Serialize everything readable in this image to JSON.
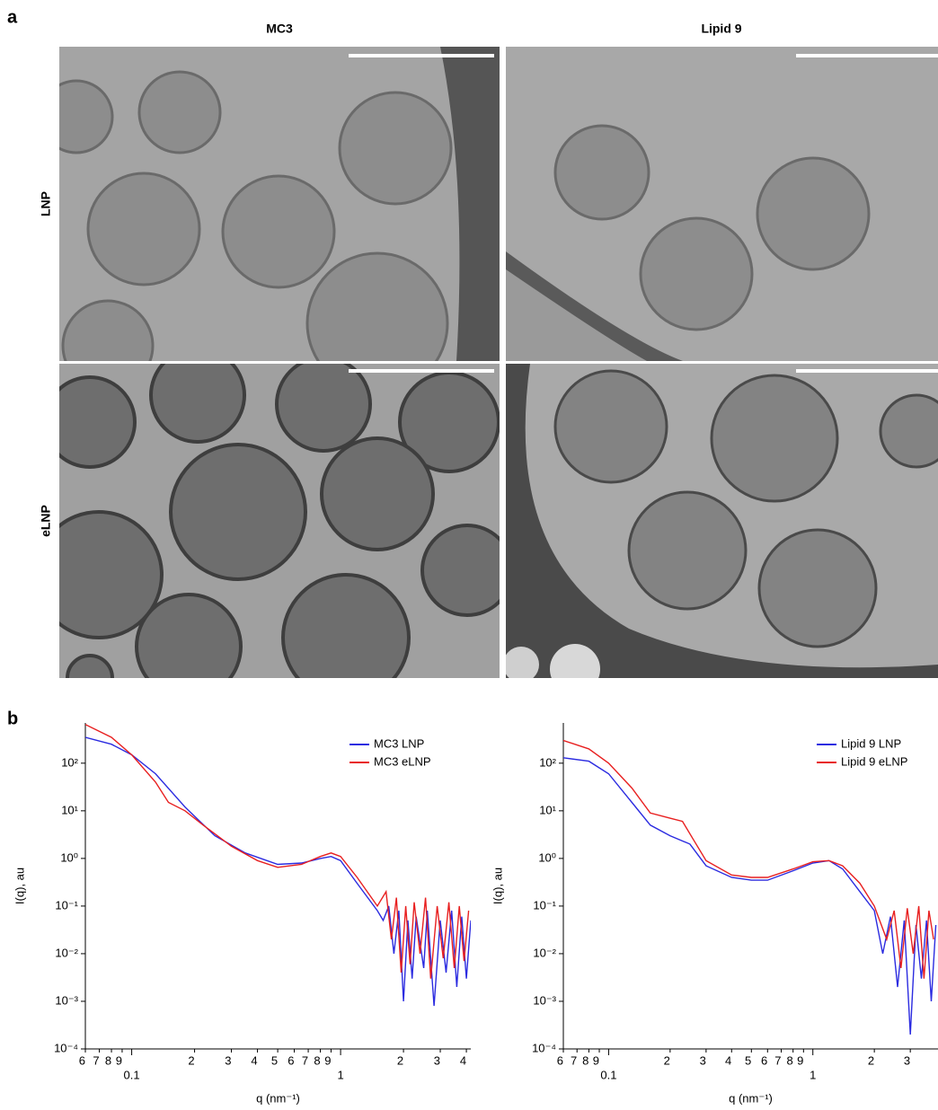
{
  "panel_a": {
    "label": "a",
    "columns": [
      "MC3",
      "Lipid 9"
    ],
    "rows": [
      "LNP",
      "eLNP"
    ]
  },
  "panel_b_label": "b",
  "chart_data": [
    {
      "type": "line",
      "xlabel": "q (nm⁻¹)",
      "ylabel": "I(q), au",
      "xscale": "log",
      "yscale": "log",
      "legend": "upper right",
      "xlim": [
        0.06,
        4.2
      ],
      "ylim": [
        0.0001,
        700
      ],
      "xticks": [
        {
          "value": 0.06,
          "label": "6"
        },
        {
          "value": 0.07,
          "label": "7"
        },
        {
          "value": 0.08,
          "label": "8"
        },
        {
          "value": 0.09,
          "label": "9"
        },
        0.1,
        {
          "value": 0.2,
          "label": "2"
        },
        {
          "value": 0.3,
          "label": "3"
        },
        {
          "value": 0.4,
          "label": "4"
        },
        {
          "value": 0.5,
          "label": "5"
        },
        {
          "value": 0.6,
          "label": "6"
        },
        {
          "value": 0.7,
          "label": "7"
        },
        {
          "value": 0.8,
          "label": "8"
        },
        {
          "value": 0.9,
          "label": "9"
        },
        1,
        {
          "value": 2,
          "label": "2"
        },
        {
          "value": 3,
          "label": "3"
        },
        {
          "value": 4,
          "label": "4"
        }
      ],
      "yticks": [
        {
          "value": 100,
          "label": "10²"
        },
        {
          "value": 10,
          "label": "10¹"
        },
        {
          "value": 1,
          "label": "10⁰"
        },
        {
          "value": 0.1,
          "label": "10⁻¹"
        },
        {
          "value": 0.01,
          "label": "10⁻²"
        },
        {
          "value": 0.001,
          "label": "10⁻³"
        },
        {
          "value": 0.0001,
          "label": "10⁻⁴"
        }
      ],
      "series": [
        {
          "name": "MC3 LNP",
          "color": "#2b2be0",
          "x": [
            0.06,
            0.08,
            0.1,
            0.13,
            0.18,
            0.25,
            0.35,
            0.5,
            0.65,
            0.8,
            0.9,
            1.0,
            1.2,
            1.5,
            1.6,
            1.7,
            1.8,
            1.9,
            2.0,
            2.1,
            2.2,
            2.3,
            2.5,
            2.6,
            2.8,
            3.0,
            3.2,
            3.4,
            3.6,
            3.8,
            4.0,
            4.2
          ],
          "values": [
            350,
            250,
            150,
            60,
            12,
            3,
            1.3,
            0.75,
            0.8,
            1.0,
            1.1,
            0.9,
            0.3,
            0.08,
            0.05,
            0.1,
            0.01,
            0.08,
            0.001,
            0.05,
            0.003,
            0.06,
            0.005,
            0.08,
            0.0008,
            0.05,
            0.004,
            0.08,
            0.002,
            0.06,
            0.003,
            0.05
          ]
        },
        {
          "name": "MC3 eLNP",
          "color": "#e82020",
          "x": [
            0.06,
            0.08,
            0.1,
            0.13,
            0.15,
            0.18,
            0.22,
            0.3,
            0.4,
            0.5,
            0.65,
            0.8,
            0.9,
            1.0,
            1.2,
            1.5,
            1.65,
            1.75,
            1.85,
            1.95,
            2.05,
            2.15,
            2.25,
            2.4,
            2.55,
            2.7,
            2.9,
            3.1,
            3.3,
            3.5,
            3.7,
            3.9,
            4.1
          ],
          "values": [
            650,
            350,
            150,
            40,
            15,
            10,
            5,
            1.8,
            0.9,
            0.65,
            0.75,
            1.1,
            1.3,
            1.1,
            0.4,
            0.1,
            0.2,
            0.02,
            0.15,
            0.004,
            0.1,
            0.006,
            0.12,
            0.01,
            0.15,
            0.003,
            0.1,
            0.008,
            0.12,
            0.005,
            0.1,
            0.007,
            0.08
          ]
        }
      ]
    },
    {
      "type": "line",
      "xlabel": "q (nm⁻¹)",
      "ylabel": "I(q), au",
      "xscale": "log",
      "yscale": "log",
      "legend": "upper right",
      "xlim": [
        0.06,
        4.1
      ],
      "ylim": [
        0.0001,
        700
      ],
      "xticks": [
        {
          "value": 0.06,
          "label": "6"
        },
        {
          "value": 0.07,
          "label": "7"
        },
        {
          "value": 0.08,
          "label": "8"
        },
        {
          "value": 0.09,
          "label": "9"
        },
        0.1,
        {
          "value": 0.2,
          "label": "2"
        },
        {
          "value": 0.3,
          "label": "3"
        },
        {
          "value": 0.4,
          "label": "4"
        },
        {
          "value": 0.5,
          "label": "5"
        },
        {
          "value": 0.6,
          "label": "6"
        },
        {
          "value": 0.7,
          "label": "7"
        },
        {
          "value": 0.8,
          "label": "8"
        },
        {
          "value": 0.9,
          "label": "9"
        },
        1,
        {
          "value": 2,
          "label": "2"
        },
        {
          "value": 3,
          "label": "3"
        }
      ],
      "yticks": [
        {
          "value": 100,
          "label": "10²"
        },
        {
          "value": 10,
          "label": "10¹"
        },
        {
          "value": 1,
          "label": "10⁰"
        },
        {
          "value": 0.1,
          "label": "10⁻¹"
        },
        {
          "value": 0.01,
          "label": "10⁻²"
        },
        {
          "value": 0.001,
          "label": "10⁻³"
        },
        {
          "value": 0.0001,
          "label": "10⁻⁴"
        }
      ],
      "series": [
        {
          "name": "Lipid 9 LNP",
          "color": "#2b2be0",
          "x": [
            0.06,
            0.08,
            0.1,
            0.13,
            0.16,
            0.2,
            0.25,
            0.3,
            0.4,
            0.5,
            0.6,
            0.8,
            1.0,
            1.2,
            1.4,
            1.7,
            2.0,
            2.2,
            2.4,
            2.6,
            2.8,
            3.0,
            3.2,
            3.4,
            3.6,
            3.8,
            4.0
          ],
          "values": [
            130,
            110,
            60,
            15,
            5,
            3,
            2,
            0.7,
            0.4,
            0.35,
            0.35,
            0.55,
            0.8,
            0.9,
            0.6,
            0.2,
            0.08,
            0.01,
            0.06,
            0.002,
            0.05,
            0.0002,
            0.04,
            0.003,
            0.05,
            0.001,
            0.04
          ]
        },
        {
          "name": "Lipid 9 eLNP",
          "color": "#e82020",
          "x": [
            0.06,
            0.08,
            0.1,
            0.13,
            0.16,
            0.2,
            0.23,
            0.26,
            0.3,
            0.4,
            0.5,
            0.6,
            0.8,
            1.0,
            1.2,
            1.4,
            1.7,
            2.0,
            2.3,
            2.5,
            2.7,
            2.9,
            3.1,
            3.3,
            3.5,
            3.7,
            3.9
          ],
          "values": [
            300,
            200,
            100,
            30,
            9,
            7,
            6,
            2.5,
            0.9,
            0.45,
            0.4,
            0.4,
            0.6,
            0.85,
            0.9,
            0.7,
            0.3,
            0.1,
            0.02,
            0.08,
            0.005,
            0.09,
            0.01,
            0.1,
            0.003,
            0.08,
            0.02
          ]
        }
      ]
    }
  ]
}
